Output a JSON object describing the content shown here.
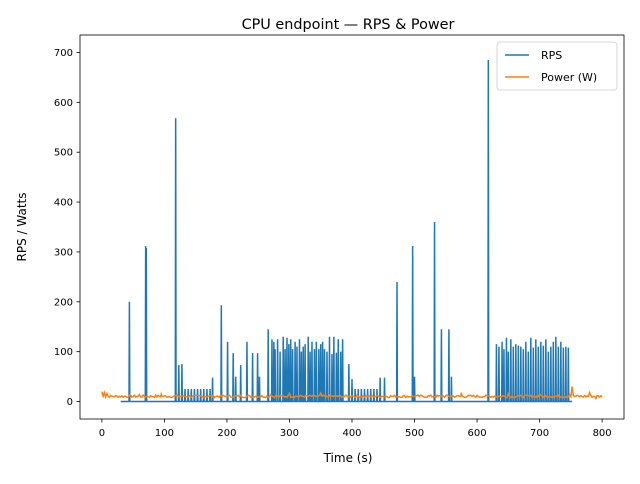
{
  "chart_data": {
    "type": "line",
    "title": "CPU endpoint — RPS & Power",
    "xlabel": "Time (s)",
    "ylabel": "RPS / Watts",
    "xlim": [
      -35,
      835
    ],
    "ylim": [
      -35,
      735
    ],
    "xticks": [
      0,
      100,
      200,
      300,
      400,
      500,
      600,
      700,
      800
    ],
    "yticks": [
      0,
      100,
      200,
      300,
      400,
      500,
      600,
      700
    ],
    "grid": false,
    "legend": "top-right",
    "series": [
      {
        "name": "RPS",
        "color": "#1f77b4",
        "baseline": 0,
        "x_range": [
          30,
          752
        ],
        "spikes": [
          [
            44,
            200
          ],
          [
            70,
            312
          ],
          [
            71,
            308
          ],
          [
            118,
            568
          ],
          [
            123,
            73
          ],
          [
            128,
            75
          ],
          [
            133,
            25
          ],
          [
            138,
            25
          ],
          [
            143,
            25
          ],
          [
            148,
            25
          ],
          [
            153,
            25
          ],
          [
            158,
            25
          ],
          [
            163,
            25
          ],
          [
            168,
            25
          ],
          [
            173,
            25
          ],
          [
            177,
            48
          ],
          [
            191,
            193
          ],
          [
            201,
            120
          ],
          [
            210,
            97
          ],
          [
            214,
            50
          ],
          [
            222,
            73
          ],
          [
            232,
            120
          ],
          [
            241,
            97
          ],
          [
            249,
            97
          ],
          [
            252,
            50
          ],
          [
            266,
            145
          ],
          [
            272,
            125
          ],
          [
            275,
            120
          ],
          [
            277,
            105
          ],
          [
            281,
            125
          ],
          [
            285,
            100
          ],
          [
            290,
            130
          ],
          [
            293,
            105
          ],
          [
            296,
            128
          ],
          [
            299,
            115
          ],
          [
            302,
            125
          ],
          [
            305,
            105
          ],
          [
            309,
            120
          ],
          [
            312,
            110
          ],
          [
            316,
            125
          ],
          [
            319,
            100
          ],
          [
            322,
            110
          ],
          [
            325,
            115
          ],
          [
            330,
            130
          ],
          [
            333,
            100
          ],
          [
            336,
            120
          ],
          [
            340,
            105
          ],
          [
            343,
            120
          ],
          [
            347,
            105
          ],
          [
            350,
            115
          ],
          [
            353,
            120
          ],
          [
            356,
            105
          ],
          [
            360,
            100
          ],
          [
            364,
            130
          ],
          [
            368,
            95
          ],
          [
            371,
            130
          ],
          [
            375,
            98
          ],
          [
            378,
            125
          ],
          [
            382,
            100
          ],
          [
            385,
            125
          ],
          [
            395,
            75
          ],
          [
            400,
            45
          ],
          [
            405,
            25
          ],
          [
            410,
            25
          ],
          [
            415,
            25
          ],
          [
            420,
            25
          ],
          [
            425,
            25
          ],
          [
            430,
            25
          ],
          [
            435,
            25
          ],
          [
            440,
            25
          ],
          [
            445,
            48
          ],
          [
            452,
            48
          ],
          [
            472,
            240
          ],
          [
            497,
            312
          ],
          [
            500,
            50
          ],
          [
            532,
            360
          ],
          [
            543,
            145
          ],
          [
            555,
            145
          ],
          [
            559,
            50
          ],
          [
            618,
            685
          ],
          [
            631,
            115
          ],
          [
            635,
            110
          ],
          [
            640,
            120
          ],
          [
            643,
            105
          ],
          [
            647,
            128
          ],
          [
            650,
            100
          ],
          [
            654,
            125
          ],
          [
            658,
            110
          ],
          [
            662,
            115
          ],
          [
            666,
            112
          ],
          [
            670,
            110
          ],
          [
            674,
            105
          ],
          [
            678,
            120
          ],
          [
            682,
            100
          ],
          [
            686,
            128
          ],
          [
            690,
            108
          ],
          [
            694,
            125
          ],
          [
            698,
            110
          ],
          [
            702,
            120
          ],
          [
            706,
            112
          ],
          [
            710,
            125
          ],
          [
            714,
            100
          ],
          [
            718,
            110
          ],
          [
            722,
            120
          ],
          [
            726,
            130
          ],
          [
            730,
            110
          ],
          [
            734,
            120
          ],
          [
            738,
            108
          ],
          [
            742,
            110
          ],
          [
            746,
            108
          ]
        ]
      },
      {
        "name": "Power (W)",
        "color": "#ff7f0e",
        "baseline_range": [
          8,
          13
        ],
        "x_range": [
          0,
          800
        ],
        "peaks": [
          [
            0,
            20
          ],
          [
            4,
            18
          ],
          [
            8,
            16
          ],
          [
            60,
            14
          ],
          [
            95,
            15
          ],
          [
            120,
            14
          ],
          [
            175,
            12
          ],
          [
            270,
            14
          ],
          [
            300,
            16
          ],
          [
            350,
            17
          ],
          [
            400,
            12
          ],
          [
            450,
            10
          ],
          [
            500,
            10
          ],
          [
            575,
            18
          ],
          [
            615,
            12
          ],
          [
            650,
            16
          ],
          [
            700,
            15
          ],
          [
            748,
            14
          ],
          [
            752,
            30
          ],
          [
            780,
            18
          ],
          [
            790,
            6
          ]
        ]
      }
    ]
  }
}
